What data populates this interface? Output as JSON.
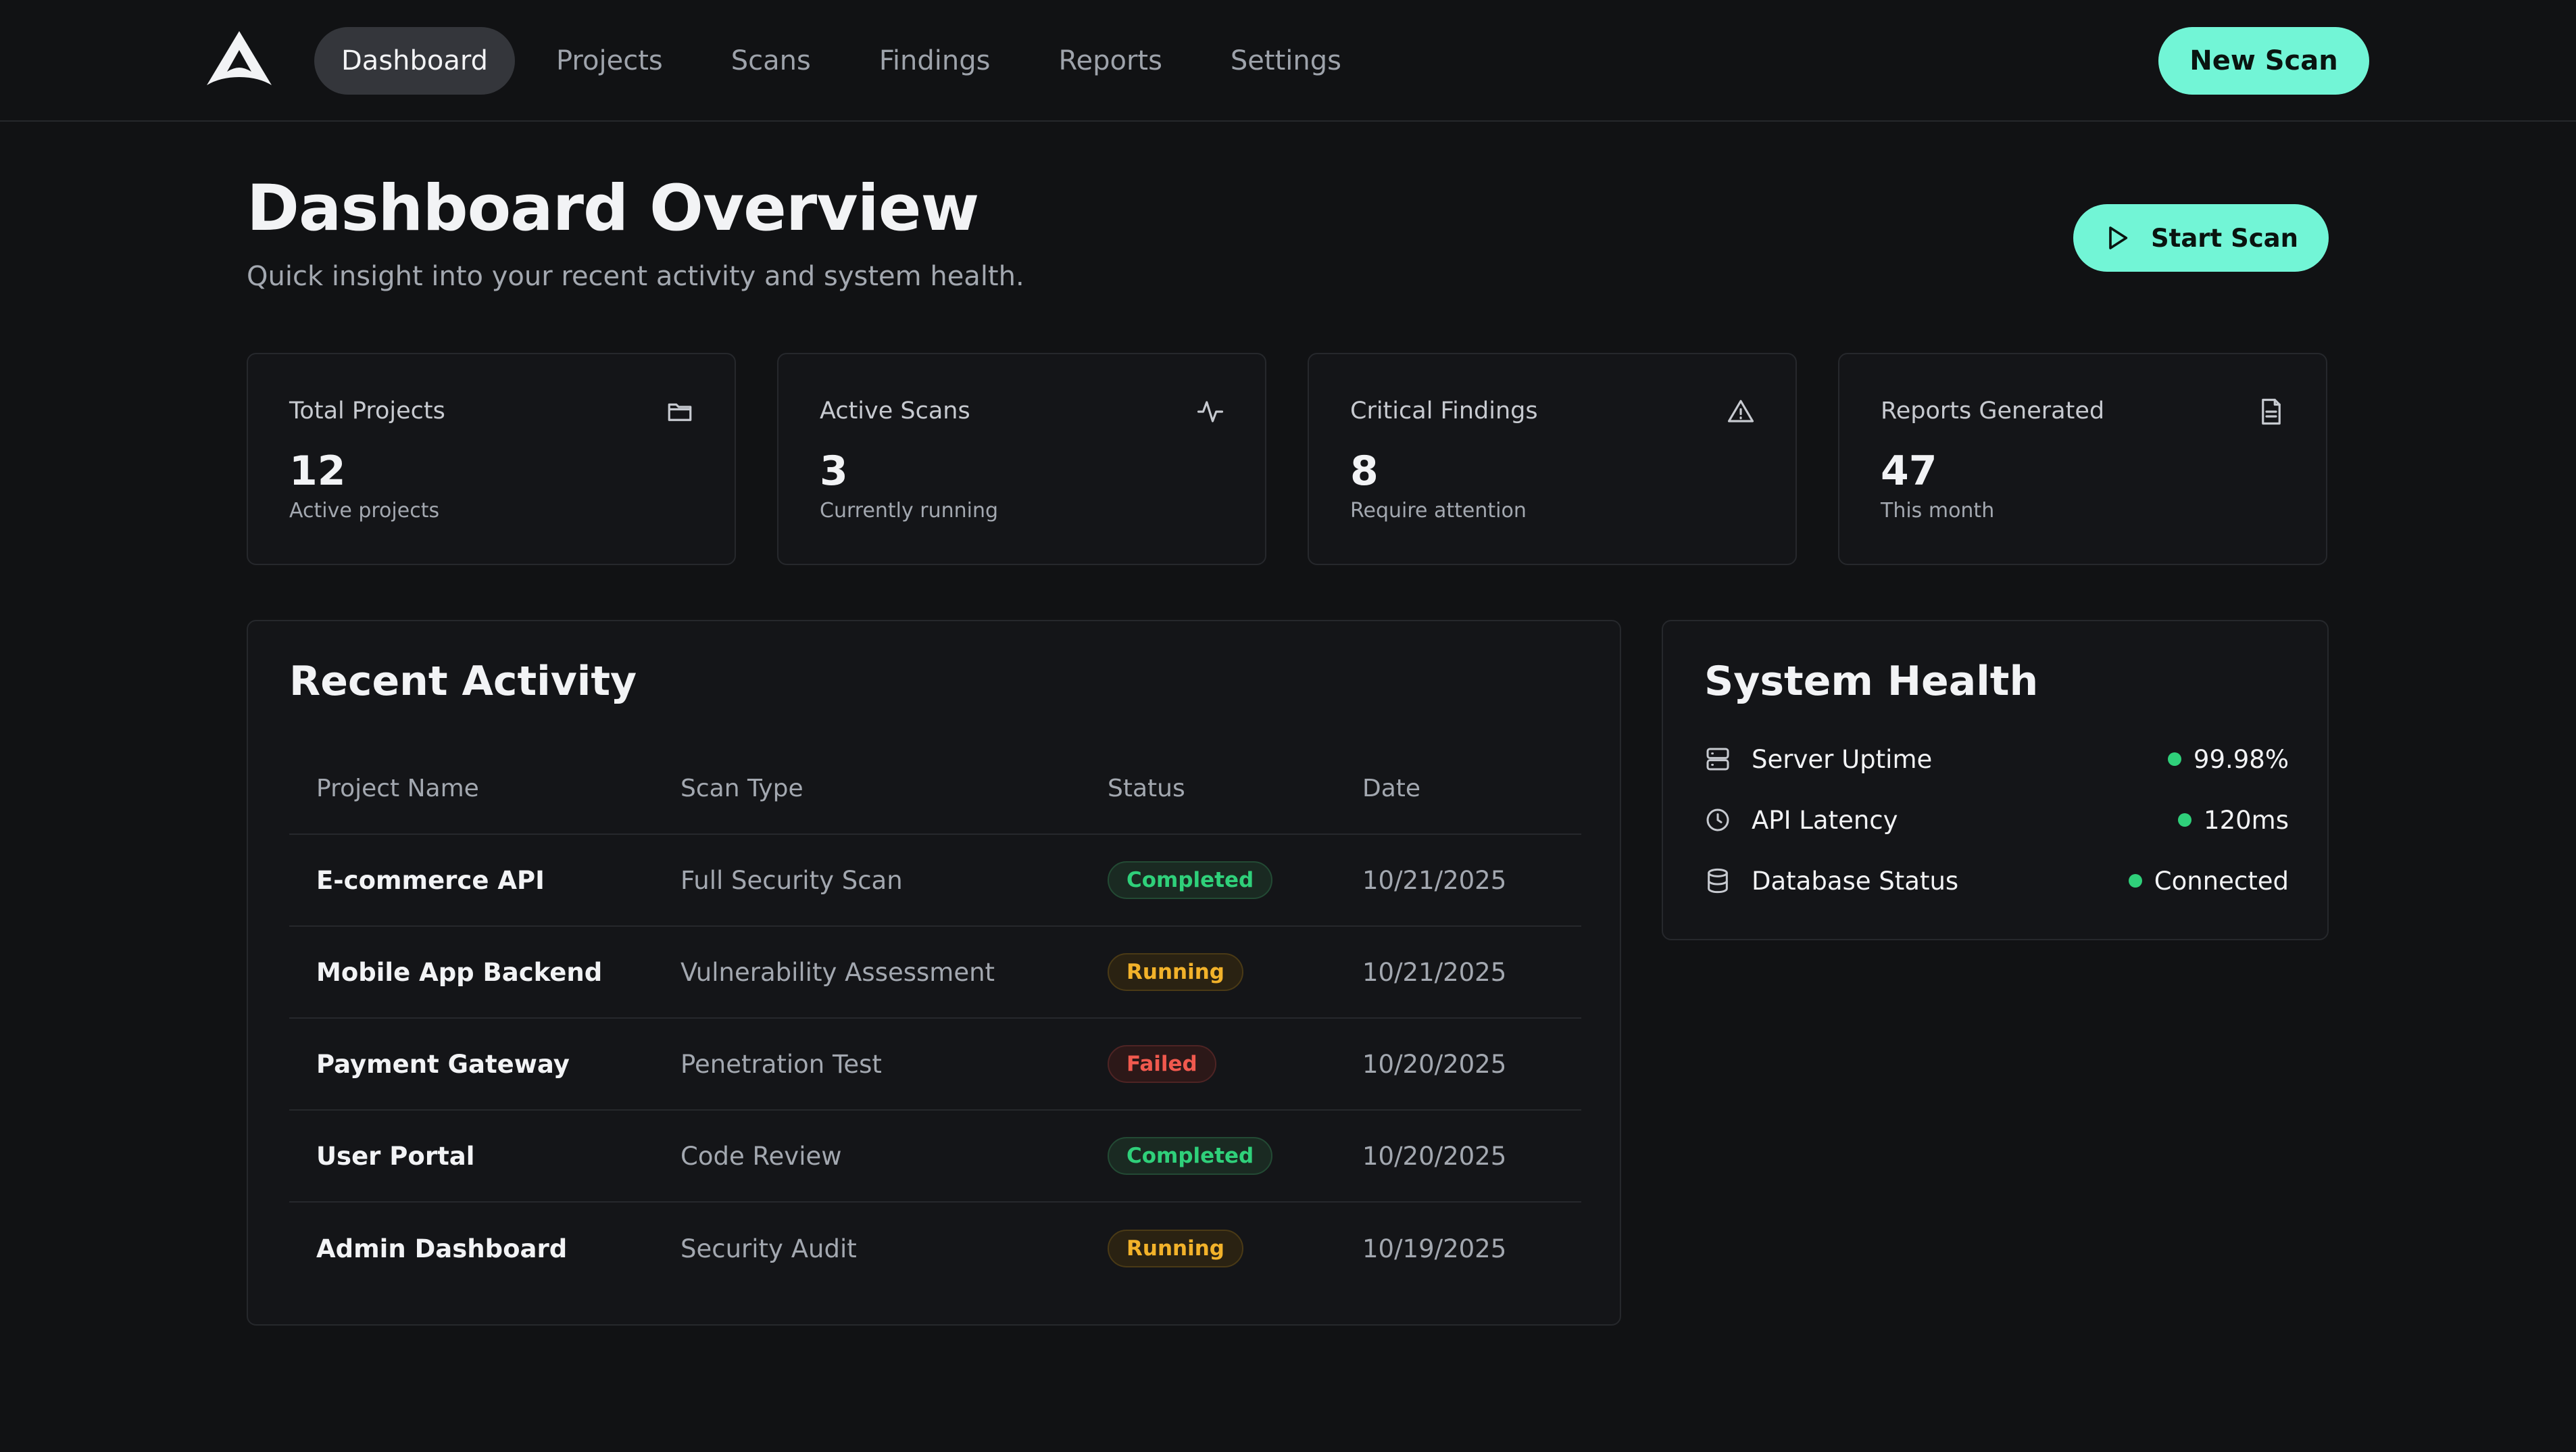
{
  "nav": {
    "items": [
      {
        "label": "Dashboard",
        "active": true
      },
      {
        "label": "Projects",
        "active": false
      },
      {
        "label": "Scans",
        "active": false
      },
      {
        "label": "Findings",
        "active": false
      },
      {
        "label": "Reports",
        "active": false
      },
      {
        "label": "Settings",
        "active": false
      }
    ],
    "new_scan_label": "New Scan"
  },
  "header": {
    "title": "Dashboard Overview",
    "subtitle": "Quick insight into your recent activity and system health.",
    "start_scan_label": "Start Scan"
  },
  "stats": [
    {
      "label": "Total Projects",
      "value": "12",
      "note": "Active projects",
      "icon": "folder-icon"
    },
    {
      "label": "Active Scans",
      "value": "3",
      "note": "Currently running",
      "icon": "activity-icon"
    },
    {
      "label": "Critical Findings",
      "value": "8",
      "note": "Require attention",
      "icon": "alert-triangle-icon"
    },
    {
      "label": "Reports Generated",
      "value": "47",
      "note": "This month",
      "icon": "file-text-icon"
    }
  ],
  "activity": {
    "title": "Recent Activity",
    "columns": [
      "Project Name",
      "Scan Type",
      "Status",
      "Date"
    ],
    "rows": [
      {
        "project": "E-commerce API",
        "type": "Full Security Scan",
        "status": "Completed",
        "date": "10/21/2025"
      },
      {
        "project": "Mobile App Backend",
        "type": "Vulnerability Assessment",
        "status": "Running",
        "date": "10/21/2025"
      },
      {
        "project": "Payment Gateway",
        "type": "Penetration Test",
        "status": "Failed",
        "date": "10/20/2025"
      },
      {
        "project": "User Portal",
        "type": "Code Review",
        "status": "Completed",
        "date": "10/20/2025"
      },
      {
        "project": "Admin Dashboard",
        "type": "Security Audit",
        "status": "Running",
        "date": "10/19/2025"
      }
    ]
  },
  "health": {
    "title": "System Health",
    "items": [
      {
        "label": "Server Uptime",
        "value": "99.98%",
        "icon": "server-icon"
      },
      {
        "label": "API Latency",
        "value": "120ms",
        "icon": "clock-icon"
      },
      {
        "label": "Database Status",
        "value": "Connected",
        "icon": "database-icon"
      }
    ]
  },
  "colors": {
    "accent": "#72f5d6",
    "background": "#111214",
    "success": "#2fd07a",
    "warning": "#f2b22a",
    "danger": "#f0594e"
  }
}
